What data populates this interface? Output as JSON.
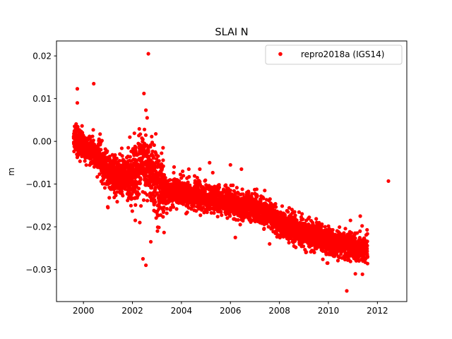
{
  "chart_data": {
    "type": "scatter",
    "title": "SLAI N",
    "xlabel": "",
    "ylabel": "m",
    "xlim": [
      1998.9,
      2013.2
    ],
    "ylim": [
      -0.0375,
      0.0235
    ],
    "x_ticks": [
      "2000",
      "2002",
      "2004",
      "2006",
      "2008",
      "2010",
      "2012"
    ],
    "y_ticks": [
      "0.02",
      "0.01",
      "0.00",
      "−0.01",
      "−0.02",
      "−0.03"
    ],
    "grid": false,
    "legend": {
      "position": "top-right",
      "entries": [
        "repro2018a (IGS14)"
      ]
    },
    "series": [
      {
        "name": "repro2018a (IGS14)",
        "color": "#ff0000",
        "marker": "circle",
        "trend": {
          "x": [
            1999.6,
            2000.0,
            2000.5,
            2001.0,
            2001.5,
            2002.0,
            2002.4,
            2002.7,
            2003.0,
            2003.5,
            2004.0,
            2004.5,
            2005.0,
            2005.5,
            2006.0,
            2006.5,
            2007.0,
            2007.5,
            2008.0,
            2008.5,
            2009.0,
            2009.5,
            2010.0,
            2010.5,
            2011.0,
            2011.3,
            2011.6
          ],
          "y": [
            0.0005,
            -0.0015,
            -0.003,
            -0.007,
            -0.008,
            -0.0085,
            -0.005,
            -0.007,
            -0.0105,
            -0.012,
            -0.012,
            -0.0125,
            -0.0135,
            -0.0135,
            -0.0145,
            -0.0155,
            -0.0155,
            -0.017,
            -0.019,
            -0.0205,
            -0.0215,
            -0.0225,
            -0.0235,
            -0.024,
            -0.0245,
            -0.025,
            -0.025
          ]
        },
        "outliers": [
          {
            "x": 1999.75,
            "y": 0.0123
          },
          {
            "x": 1999.75,
            "y": 0.009
          },
          {
            "x": 2000.42,
            "y": 0.0135
          },
          {
            "x": 2002.65,
            "y": 0.0205
          },
          {
            "x": 2002.47,
            "y": 0.0112
          },
          {
            "x": 2002.55,
            "y": 0.0073
          },
          {
            "x": 2002.6,
            "y": 0.0055
          },
          {
            "x": 2000.4,
            "y": 0.0027
          },
          {
            "x": 2002.43,
            "y": -0.0275
          },
          {
            "x": 2002.55,
            "y": -0.029
          },
          {
            "x": 2002.75,
            "y": -0.0235
          },
          {
            "x": 2002.3,
            "y": -0.019
          },
          {
            "x": 2001.0,
            "y": -0.0155
          },
          {
            "x": 2006.2,
            "y": -0.0225
          },
          {
            "x": 2010.75,
            "y": -0.035
          },
          {
            "x": 2011.1,
            "y": -0.031
          },
          {
            "x": 2010.9,
            "y": -0.0185
          },
          {
            "x": 2011.3,
            "y": -0.0175
          },
          {
            "x": 2012.45,
            "y": -0.0093
          },
          {
            "x": 2003.25,
            "y": -0.0015
          },
          {
            "x": 2003.7,
            "y": -0.006
          },
          {
            "x": 2004.3,
            "y": -0.0065
          },
          {
            "x": 2005.15,
            "y": -0.005
          },
          {
            "x": 2006.0,
            "y": -0.0055
          },
          {
            "x": 2006.45,
            "y": -0.0065
          },
          {
            "x": 2007.4,
            "y": -0.0115
          },
          {
            "x": 2007.6,
            "y": -0.024
          },
          {
            "x": 2008.35,
            "y": -0.0165
          },
          {
            "x": 2009.1,
            "y": -0.0185
          },
          {
            "x": 2009.95,
            "y": -0.0285
          },
          {
            "x": 2006.9,
            "y": -0.0185
          },
          {
            "x": 2004.75,
            "y": -0.0065
          }
        ]
      }
    ]
  }
}
